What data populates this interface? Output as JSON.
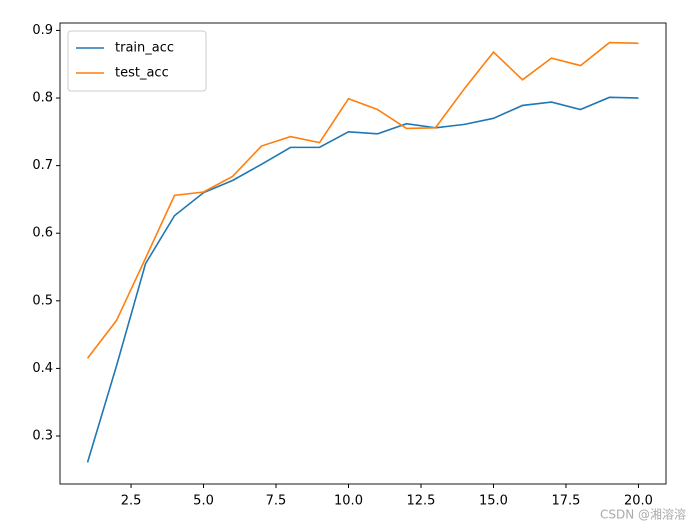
{
  "chart_data": {
    "type": "line",
    "x": [
      1,
      2,
      3,
      4,
      5,
      6,
      7,
      8,
      9,
      10,
      11,
      12,
      13,
      14,
      15,
      16,
      17,
      18,
      19,
      20
    ],
    "series": [
      {
        "name": "train_acc",
        "color": "#1f77b4",
        "values": [
          0.261,
          0.404,
          0.555,
          0.626,
          0.66,
          0.678,
          0.702,
          0.727,
          0.727,
          0.75,
          0.747,
          0.762,
          0.756,
          0.761,
          0.77,
          0.789,
          0.794,
          0.783,
          0.801,
          0.8
        ]
      },
      {
        "name": "test_acc",
        "color": "#ff7f0e",
        "values": [
          0.415,
          0.471,
          0.563,
          0.656,
          0.661,
          0.684,
          0.729,
          0.743,
          0.734,
          0.799,
          0.783,
          0.755,
          0.756,
          0.814,
          0.868,
          0.827,
          0.859,
          0.848,
          0.882,
          0.881
        ]
      }
    ],
    "xlim": [
      0.05,
      20.95
    ],
    "xticks": [
      2.5,
      {
        "value": 5,
        "label": "5.0"
      },
      7.5,
      {
        "value": 10,
        "label": "10.0"
      },
      12.5,
      {
        "value": 15,
        "label": "15.0"
      },
      17.5,
      {
        "value": 20,
        "label": "20.0"
      }
    ],
    "ylim": [
      0.229,
      0.911
    ],
    "yticks": [
      0.3,
      0.4,
      0.5,
      0.6,
      0.7,
      0.8,
      0.9
    ],
    "legend": "upper left"
  },
  "watermark": "CSDN @湘溶溶"
}
